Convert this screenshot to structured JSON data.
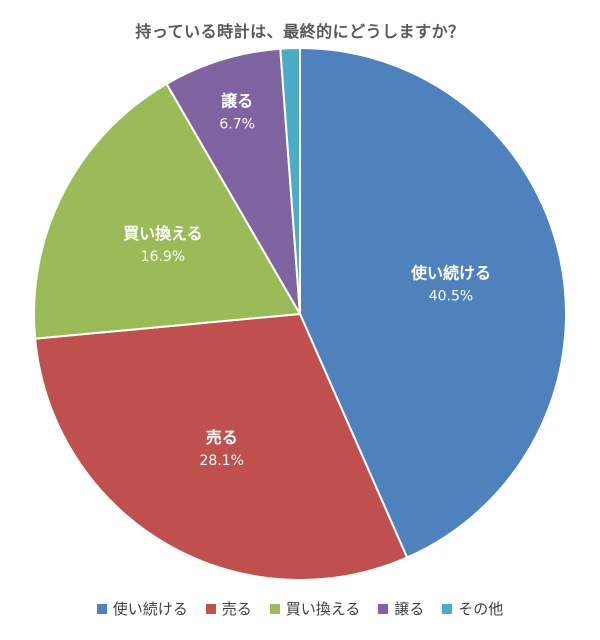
{
  "chart_data": {
    "type": "pie",
    "title": "持っている時計は、最終的にどうしますか？",
    "legend_position": "bottom",
    "start_angle_deg": 0,
    "direction": "clockwise",
    "slices": [
      {
        "label": "使い続ける",
        "value": 40.5,
        "value_label": "40.5%",
        "color": "#4F81BD"
      },
      {
        "label": "売る",
        "value": 28.1,
        "value_label": "28.1%",
        "color": "#C0504D"
      },
      {
        "label": "買い換える",
        "value": 16.9,
        "value_label": "16.9%",
        "color": "#9BBB59"
      },
      {
        "label": "譲る",
        "value": 6.7,
        "value_label": "6.7%",
        "color": "#8064A2"
      },
      {
        "label": "その他",
        "value": 1.1,
        "value_label": "",
        "color": "#4BACC6"
      }
    ]
  }
}
